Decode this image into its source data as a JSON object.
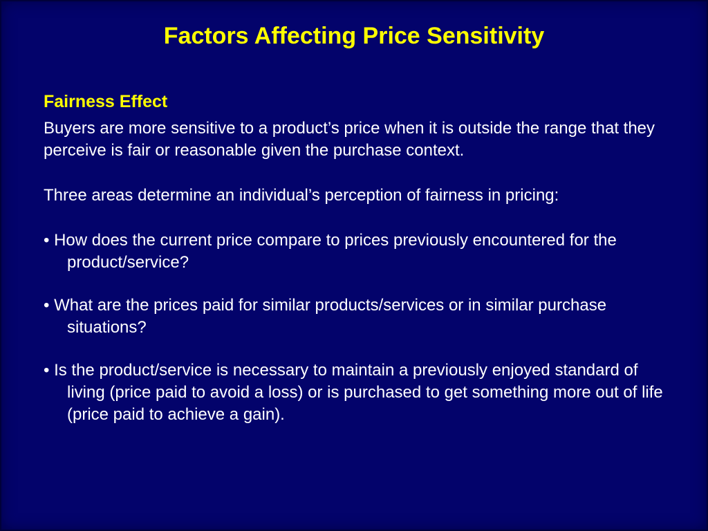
{
  "slide": {
    "title": "Factors Affecting Price Sensitivity",
    "heading": "Fairness Effect",
    "bullet_char": "•",
    "paragraphs": {
      "intro": "Buyers are more sensitive to a product’s price when it is outside the range that they perceive is fair or reasonable given the purchase context.",
      "lead_in": "Three areas determine an individual’s perception of fairness in pricing:"
    },
    "bullets": [
      "How does the current price compare to prices previously encountered for the product/service?",
      "What are the prices paid for similar products/services or in similar purchase situations?",
      "Is the product/service is necessary to maintain a previously enjoyed standard of living (price paid to avoid a loss) or is purchased to get something more out of life (price paid to achieve a gain)."
    ],
    "colors": {
      "background": "#03036b",
      "title": "#ffff00",
      "heading": "#ffff00",
      "body": "#ffffff"
    }
  }
}
